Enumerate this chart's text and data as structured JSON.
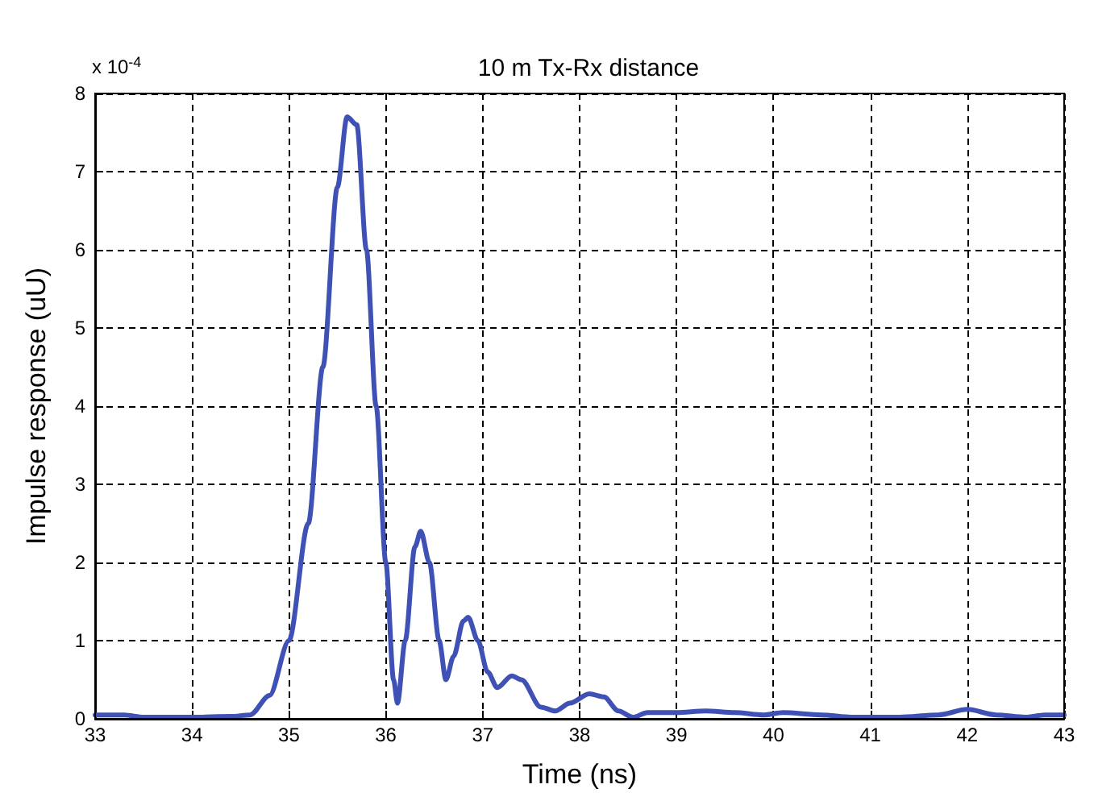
{
  "chart_data": {
    "type": "line",
    "title": "10 m Tx-Rx distance",
    "xlabel": "Time (ns)",
    "ylabel": "Impulse response (uU)",
    "annotations": [
      "x 10$^{-4}$"
    ],
    "series": [
      {
        "color": "#3f51b5",
        "x": [
          33,
          33.3,
          33.5,
          34,
          34.4,
          34.6,
          34.8,
          35,
          35.2,
          35.35,
          35.5,
          35.6,
          35.7,
          35.8,
          35.9,
          36,
          36.08,
          36.12,
          36.2,
          36.3,
          36.36,
          36.45,
          36.55,
          36.62,
          36.7,
          36.8,
          36.85,
          36.95,
          37.05,
          37.15,
          37.3,
          37.4,
          37.6,
          37.75,
          37.9,
          38.1,
          38.25,
          38.4,
          38.55,
          38.7,
          39,
          39.3,
          39.6,
          39.9,
          40.1,
          40.5,
          40.8,
          41.3,
          41.7,
          42,
          42.3,
          42.6,
          42.8,
          43
        ],
        "values": [
          0.05,
          0.05,
          0.02,
          0.02,
          0.03,
          0.05,
          0.3,
          1,
          2.5,
          4.5,
          6.8,
          7.7,
          7.6,
          6,
          4,
          2,
          0.5,
          0.2,
          1,
          2.2,
          2.4,
          2,
          1,
          0.5,
          0.8,
          1.25,
          1.3,
          1,
          0.6,
          0.4,
          0.55,
          0.5,
          0.15,
          0.1,
          0.2,
          0.32,
          0.28,
          0.1,
          0.02,
          0.08,
          0.08,
          0.1,
          0.08,
          0.05,
          0.08,
          0.05,
          0.02,
          0.02,
          0.05,
          0.12,
          0.05,
          0.02,
          0.05,
          0.05
        ]
      }
    ],
    "xlim": [
      33,
      43
    ],
    "xticks": [
      33,
      34,
      35,
      36,
      37,
      38,
      39,
      40,
      41,
      42,
      43
    ],
    "ylim": [
      0,
      8
    ],
    "yticks": [
      0,
      1,
      2,
      3,
      4,
      5,
      6,
      7,
      8
    ],
    "grid": true,
    "marker": "none",
    "line_style": "solid"
  }
}
